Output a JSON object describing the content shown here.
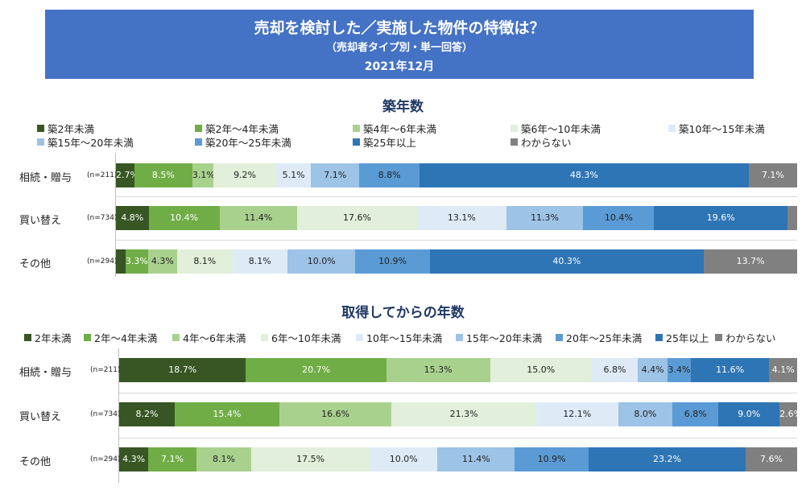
{
  "header": {
    "title": "売却を検討した／実施した物件の特徴は？",
    "subtitle": "（売却者タイプ別・単一回答）",
    "date": "2021年12月",
    "background": "#4472c4"
  },
  "colors": [
    "#375623",
    "#70ad47",
    "#a9d18e",
    "#e2efda",
    "#deebf7",
    "#9dc3e6",
    "#5b9bd5",
    "#2e75b6",
    "#808080"
  ],
  "label_colors": [
    "#ffffff",
    "#ffffff",
    "#222222",
    "#222222",
    "#222222",
    "#222222",
    "#222222",
    "#ffffff",
    "#ffffff"
  ],
  "chart_data": [
    {
      "type": "bar",
      "orientation": "horizontal-stacked-100",
      "title": "築年数",
      "categories": [
        "相続・贈与",
        "買い替え",
        "その他"
      ],
      "n_labels": [
        "(n=211)",
        "(n=734)",
        "(n=294)"
      ],
      "series": [
        {
          "name": "築2年未満",
          "values": [
            2.7,
            4.8,
            1.4
          ]
        },
        {
          "name": "築2年～4年未満",
          "values": [
            8.5,
            10.4,
            3.3
          ]
        },
        {
          "name": "築4年～6年未満",
          "values": [
            3.1,
            11.4,
            4.3
          ]
        },
        {
          "name": "築6年～10年未満",
          "values": [
            9.2,
            17.6,
            8.1
          ]
        },
        {
          "name": "築10年～15年未満",
          "values": [
            5.1,
            13.1,
            8.1
          ]
        },
        {
          "name": "築15年～20年未満",
          "values": [
            7.1,
            11.3,
            10.0
          ]
        },
        {
          "name": "築20年～25年未満",
          "values": [
            8.8,
            10.4,
            10.9
          ]
        },
        {
          "name": "築25年以上",
          "values": [
            48.3,
            19.6,
            40.3
          ]
        },
        {
          "name": "わからない",
          "values": [
            7.1,
            1.4,
            13.7
          ]
        }
      ],
      "label_min": 2.5
    },
    {
      "type": "bar",
      "orientation": "horizontal-stacked-100",
      "title": "取得してからの年数",
      "categories": [
        "相続・贈与",
        "買い替え",
        "その他"
      ],
      "n_labels": [
        "(n=211)",
        "(n=734)",
        "(n=294)"
      ],
      "series": [
        {
          "name": "2年未満",
          "values": [
            18.7,
            8.2,
            4.3
          ]
        },
        {
          "name": "2年～4年未満",
          "values": [
            20.7,
            15.4,
            7.1
          ]
        },
        {
          "name": "4年～6年未満",
          "values": [
            15.3,
            16.6,
            8.1
          ]
        },
        {
          "name": "6年～10年未満",
          "values": [
            15.0,
            21.3,
            17.5
          ]
        },
        {
          "name": "10年～15年未満",
          "values": [
            6.8,
            12.1,
            10.0
          ]
        },
        {
          "name": "15年～20年未満",
          "values": [
            4.4,
            8.0,
            11.4
          ]
        },
        {
          "name": "20年～25年未満",
          "values": [
            3.4,
            6.8,
            10.9
          ]
        },
        {
          "name": "25年以上",
          "values": [
            11.6,
            9.0,
            23.2
          ]
        },
        {
          "name": "わからない",
          "values": [
            4.1,
            2.6,
            7.6
          ]
        }
      ],
      "label_min": 2.5
    }
  ]
}
